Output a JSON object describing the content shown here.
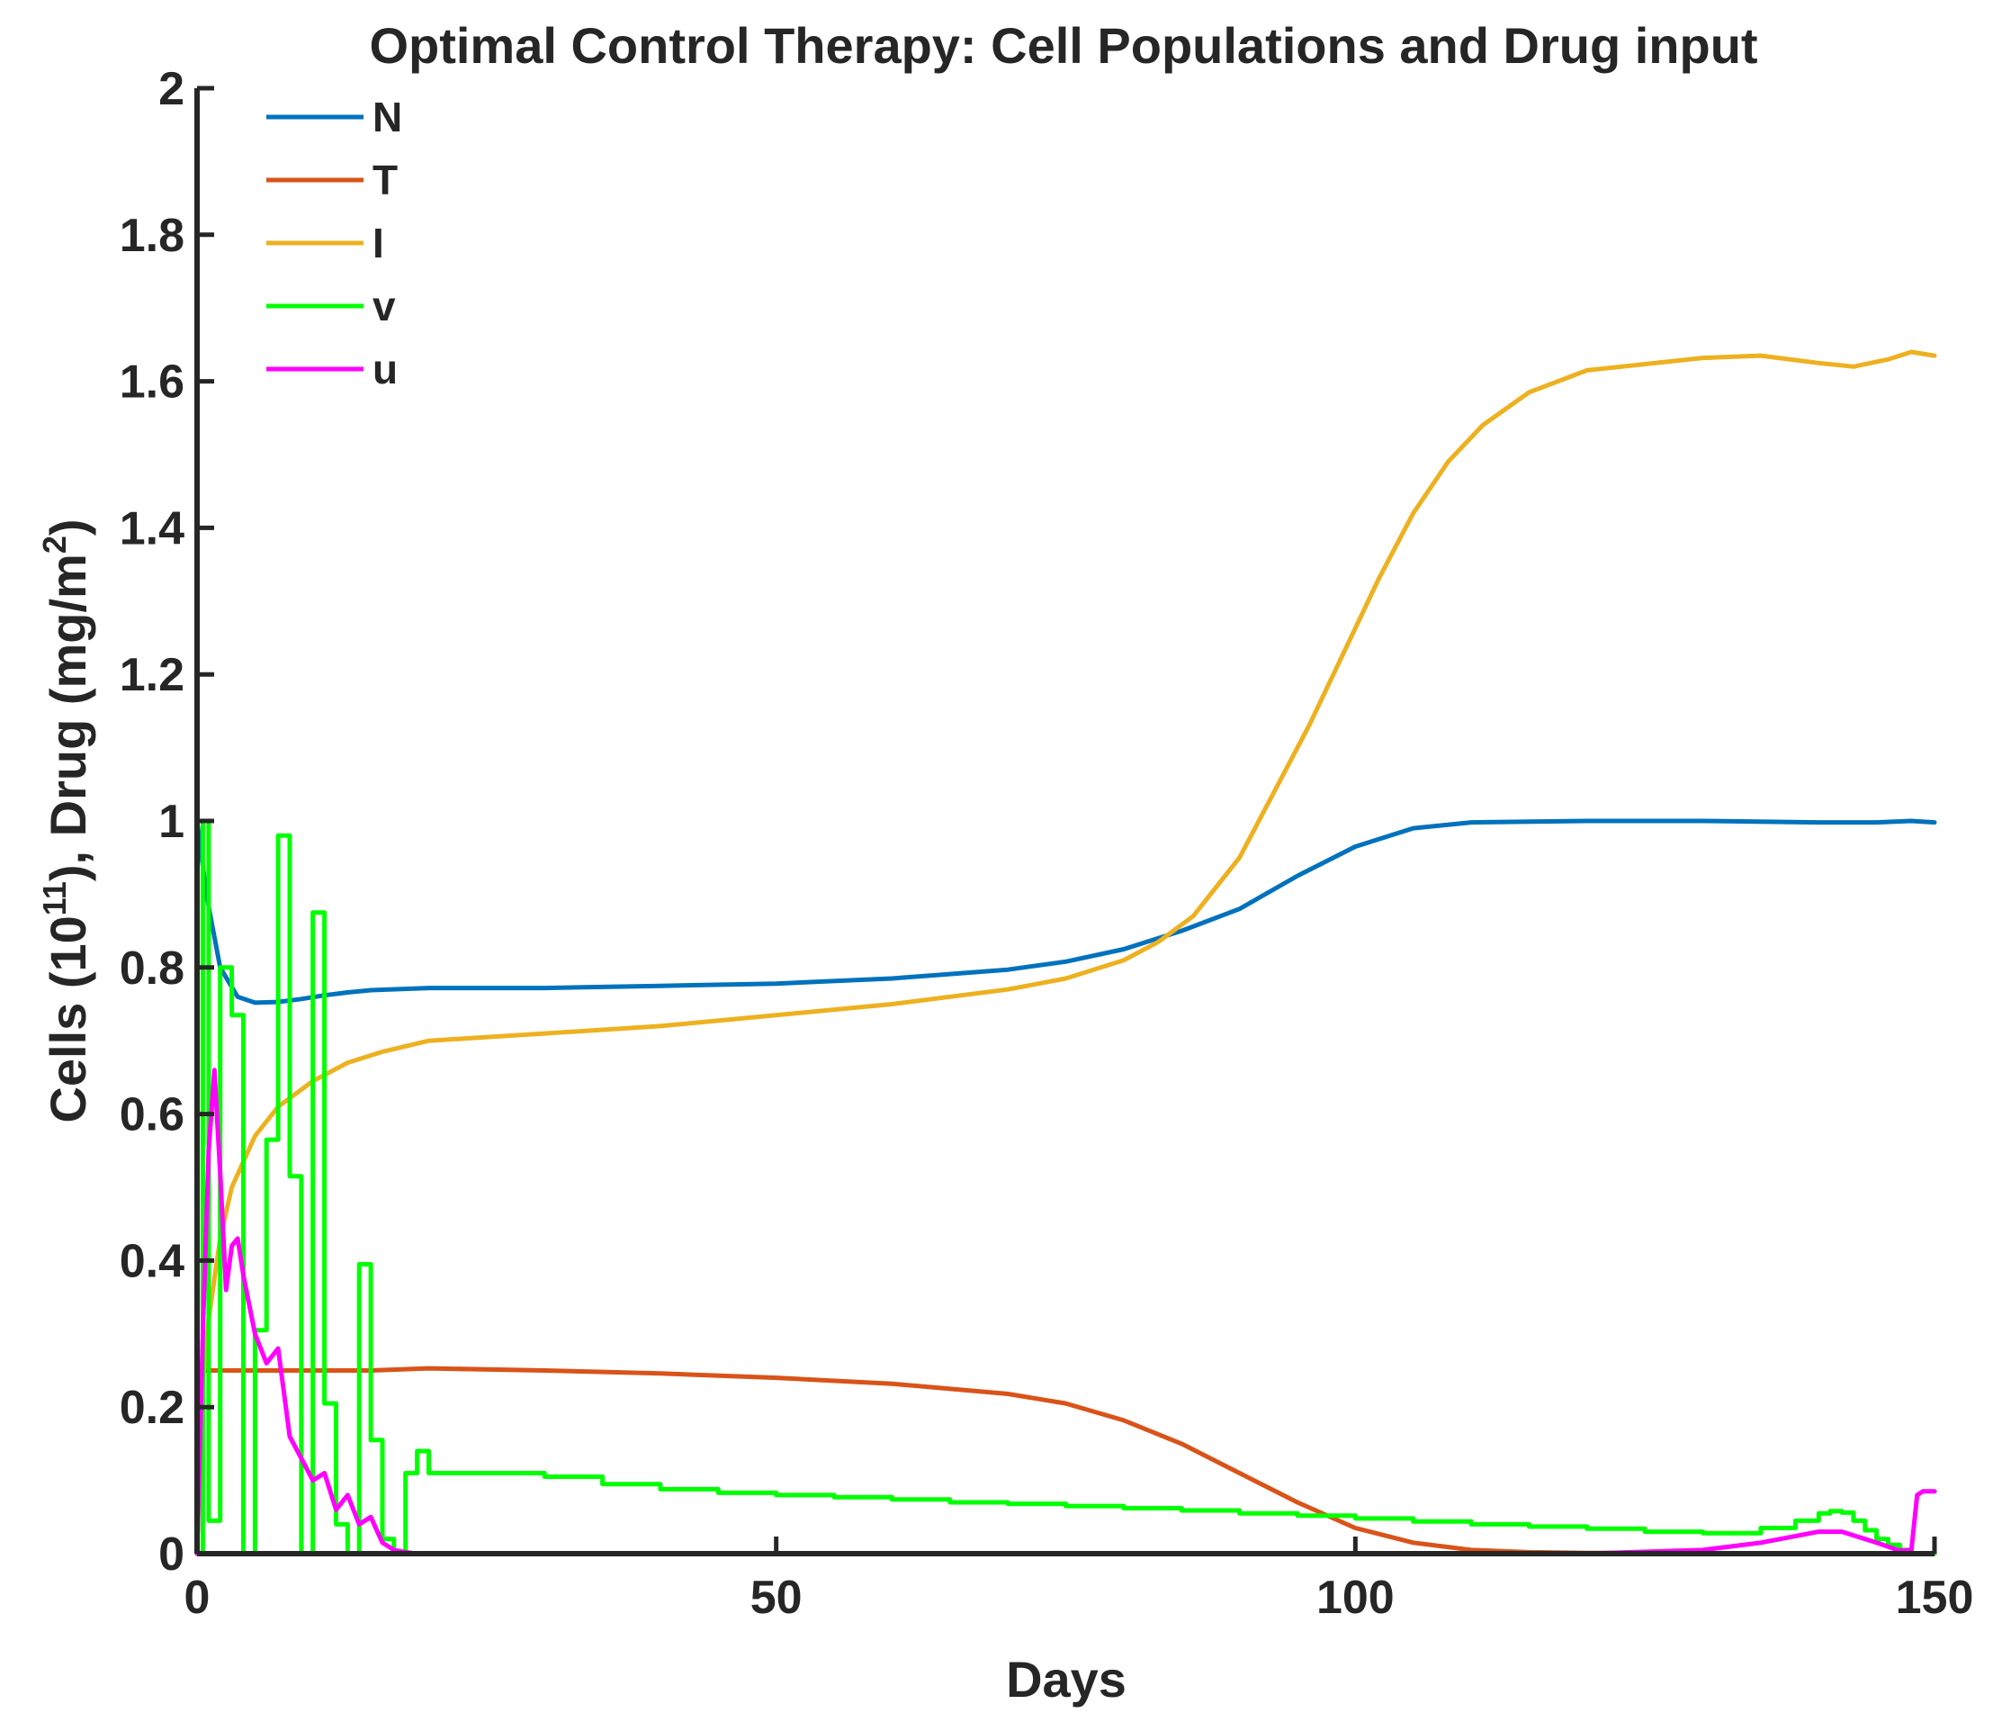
{
  "chart_data": {
    "type": "line",
    "title": "Optimal Control Therapy: Cell Populations and Drug input",
    "xlabel": "Days",
    "ylabel": "Cells (10^11), Drug (mg/m^2)",
    "ylabel_parts": {
      "pre": "Cells (10",
      "exp1": "11",
      "mid": "), Drug (mg/m",
      "exp2": "2",
      "post": ")"
    },
    "xlim": [
      0,
      150
    ],
    "ylim": [
      0,
      2
    ],
    "xticks": [
      0,
      50,
      100,
      150
    ],
    "xtick_labels": [
      "0",
      "50",
      "100",
      "150"
    ],
    "yticks": [
      0,
      0.2,
      0.4,
      0.6,
      0.8,
      1,
      1.2,
      1.4,
      1.6,
      1.8,
      2
    ],
    "ytick_labels": [
      "0",
      "0.2",
      "0.4",
      "0.6",
      "0.8",
      "1",
      "1.2",
      "1.4",
      "1.6",
      "1.8",
      "2"
    ],
    "grid": false,
    "legend_position": "top-left",
    "series": [
      {
        "name": "N",
        "color": "#0072BD",
        "step": false,
        "x": [
          0,
          0.8,
          2,
          3.5,
          5,
          7,
          9,
          11,
          13,
          15,
          20,
          30,
          40,
          50,
          60,
          70,
          75,
          80,
          85,
          90,
          95,
          100,
          105,
          110,
          120,
          130,
          140,
          145,
          148,
          150
        ],
        "y": [
          1.0,
          0.9,
          0.8,
          0.76,
          0.752,
          0.753,
          0.757,
          0.762,
          0.766,
          0.769,
          0.772,
          0.772,
          0.775,
          0.778,
          0.785,
          0.797,
          0.808,
          0.825,
          0.85,
          0.88,
          0.925,
          0.965,
          0.99,
          0.998,
          1.0,
          1.0,
          0.998,
          0.998,
          1.0,
          0.998
        ]
      },
      {
        "name": "T",
        "color": "#D95319",
        "step": false,
        "x": [
          0,
          0.4,
          1,
          3,
          10,
          15,
          20,
          30,
          40,
          50,
          60,
          70,
          75,
          80,
          85,
          90,
          95,
          100,
          105,
          110,
          115,
          120,
          130,
          140,
          150
        ],
        "y": [
          0.0,
          0.25,
          0.25,
          0.25,
          0.25,
          0.25,
          0.253,
          0.25,
          0.246,
          0.24,
          0.232,
          0.218,
          0.205,
          0.182,
          0.15,
          0.11,
          0.07,
          0.035,
          0.015,
          0.005,
          0.002,
          0.001,
          0.0,
          0.0,
          0.0
        ]
      },
      {
        "name": "I",
        "color": "#EDB120",
        "step": false,
        "x": [
          0,
          1,
          2,
          3,
          5,
          7,
          10,
          13,
          16,
          20,
          30,
          40,
          50,
          60,
          70,
          75,
          80,
          83,
          86,
          90,
          93,
          96,
          99,
          102,
          105,
          108,
          111,
          115,
          120,
          130,
          135,
          140,
          143,
          146,
          148,
          150
        ],
        "y": [
          0.15,
          0.32,
          0.43,
          0.5,
          0.57,
          0.61,
          0.645,
          0.67,
          0.685,
          0.7,
          0.71,
          0.72,
          0.735,
          0.75,
          0.77,
          0.785,
          0.81,
          0.835,
          0.87,
          0.95,
          1.04,
          1.13,
          1.23,
          1.33,
          1.42,
          1.49,
          1.54,
          1.585,
          1.615,
          1.632,
          1.635,
          1.625,
          1.62,
          1.63,
          1.64,
          1.635
        ]
      },
      {
        "name": "v",
        "color": "#00FF00",
        "step": true,
        "x": [
          0,
          0.5,
          1,
          2,
          3,
          4,
          5,
          6,
          7,
          8,
          9,
          10,
          11,
          12,
          13,
          14,
          15,
          16,
          17,
          18,
          19,
          20,
          25,
          30,
          35,
          40,
          45,
          50,
          55,
          60,
          65,
          70,
          75,
          80,
          85,
          90,
          95,
          100,
          105,
          110,
          115,
          120,
          125,
          130,
          135,
          138,
          140,
          141,
          142,
          143,
          144,
          145,
          146,
          147,
          148,
          149,
          150
        ],
        "y": [
          0.0,
          1.0,
          0.045,
          0.8,
          0.735,
          0.0,
          0.305,
          0.565,
          0.98,
          0.515,
          0.0,
          0.875,
          0.205,
          0.04,
          0.0,
          0.395,
          0.155,
          0.02,
          0.0,
          0.11,
          0.14,
          0.11,
          0.11,
          0.105,
          0.095,
          0.088,
          0.083,
          0.08,
          0.077,
          0.074,
          0.07,
          0.068,
          0.065,
          0.062,
          0.059,
          0.055,
          0.052,
          0.048,
          0.044,
          0.04,
          0.037,
          0.034,
          0.03,
          0.028,
          0.035,
          0.045,
          0.055,
          0.058,
          0.056,
          0.045,
          0.032,
          0.02,
          0.012,
          0.005,
          0.0,
          0.0,
          0.02
        ]
      },
      {
        "name": "u",
        "color": "#FF00FF",
        "step": false,
        "x": [
          0,
          0.5,
          1,
          1.5,
          2,
          2.5,
          3,
          3.5,
          4,
          4.5,
          5,
          6,
          7,
          8,
          9,
          10,
          11,
          12,
          13,
          14,
          15,
          16,
          17,
          18,
          19,
          20,
          30,
          50,
          80,
          100,
          120,
          130,
          135,
          140,
          142,
          145,
          147,
          148,
          148.5,
          149,
          150
        ],
        "y": [
          0.0,
          0.3,
          0.55,
          0.66,
          0.52,
          0.36,
          0.42,
          0.43,
          0.38,
          0.34,
          0.3,
          0.26,
          0.28,
          0.16,
          0.13,
          0.1,
          0.11,
          0.06,
          0.08,
          0.04,
          0.05,
          0.015,
          0.005,
          0.002,
          0.0,
          0.0,
          0.0,
          0.0,
          0.0,
          0.0,
          0.0,
          0.005,
          0.015,
          0.03,
          0.03,
          0.015,
          0.004,
          0.005,
          0.08,
          0.085,
          0.085
        ]
      }
    ]
  }
}
